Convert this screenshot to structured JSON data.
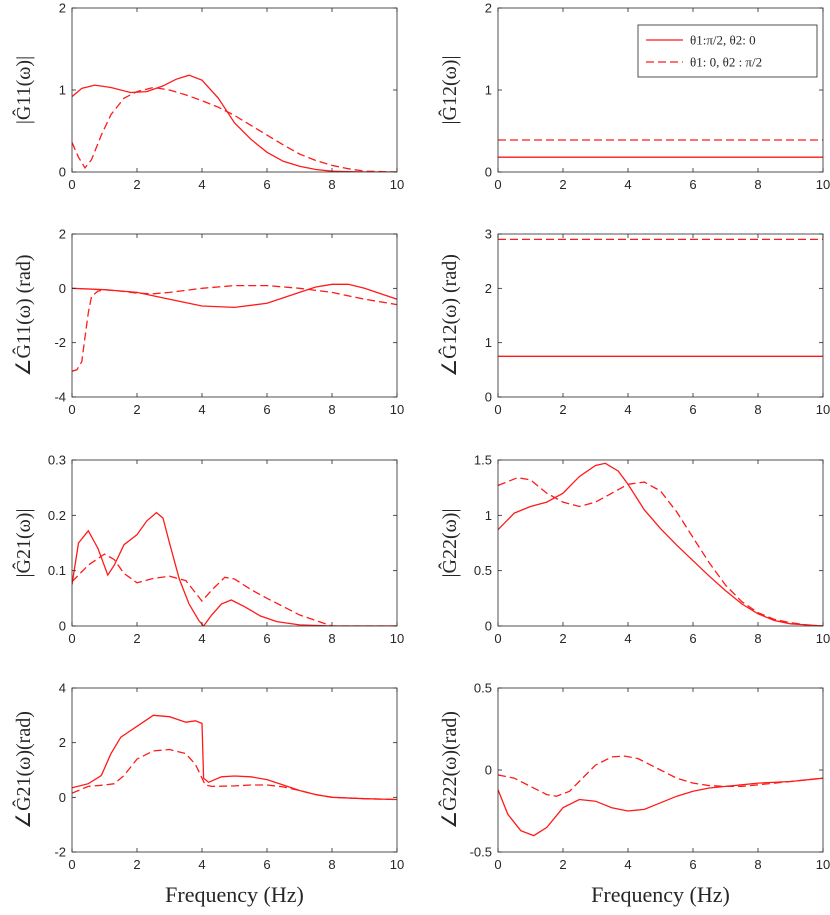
{
  "figure": {
    "x_label": "Frequency (Hz)",
    "line_color": "#ff1a1a",
    "legend": [
      {
        "label": "θ1:π/2, θ2: 0",
        "style": "solid"
      },
      {
        "label": "θ1: 0, θ2 : π/2",
        "style": "dashed"
      }
    ]
  },
  "chart_data": [
    {
      "id": "g11-mag",
      "type": "line",
      "ylabel": "|Ĝ11(ω)|",
      "xlim": [
        0,
        10
      ],
      "ylim": [
        0,
        2
      ],
      "xticks": [
        "0",
        "2",
        "4",
        "6",
        "8",
        "10"
      ],
      "yticks": [
        "0",
        "1",
        "2"
      ],
      "series": [
        {
          "name": "θ1:π/2, θ2: 0",
          "style": "solid",
          "x": [
            0,
            0.3,
            0.7,
            1.2,
            1.8,
            2.3,
            2.8,
            3.2,
            3.6,
            4.0,
            4.5,
            5.0,
            5.5,
            6.0,
            6.5,
            7.0,
            7.5,
            8.0,
            8.5,
            9.0,
            10
          ],
          "y": [
            0.92,
            1.02,
            1.06,
            1.03,
            0.97,
            0.98,
            1.05,
            1.13,
            1.18,
            1.12,
            0.9,
            0.6,
            0.4,
            0.24,
            0.13,
            0.07,
            0.03,
            0.01,
            0.005,
            0,
            0
          ]
        },
        {
          "name": "θ1: 0, θ2 : π/2",
          "style": "dashed",
          "x": [
            0,
            0.2,
            0.4,
            0.6,
            0.9,
            1.2,
            1.6,
            2.0,
            2.5,
            3.0,
            3.5,
            4.0,
            4.5,
            5.0,
            5.5,
            6.0,
            6.5,
            7.0,
            7.5,
            8.0,
            8.5,
            9.0,
            10
          ],
          "y": [
            0.36,
            0.18,
            0.05,
            0.15,
            0.45,
            0.7,
            0.9,
            0.98,
            1.03,
            1.0,
            0.94,
            0.87,
            0.79,
            0.69,
            0.57,
            0.45,
            0.33,
            0.22,
            0.14,
            0.08,
            0.04,
            0.01,
            0
          ]
        }
      ]
    },
    {
      "id": "g12-mag",
      "type": "line",
      "ylabel": "|Ĝ12(ω)|",
      "xlim": [
        0,
        10
      ],
      "ylim": [
        0,
        2
      ],
      "xticks": [
        "0",
        "2",
        "4",
        "6",
        "8",
        "10"
      ],
      "yticks": [
        "0",
        "1",
        "2"
      ],
      "legend_position": "top-right",
      "series": [
        {
          "name": "θ1:π/2, θ2: 0",
          "style": "solid",
          "x": [
            0,
            10
          ],
          "y": [
            0.18,
            0.18
          ]
        },
        {
          "name": "θ1: 0, θ2 : π/2",
          "style": "dashed",
          "x": [
            0,
            10
          ],
          "y": [
            0.39,
            0.39
          ]
        }
      ]
    },
    {
      "id": "g11-phase",
      "type": "line",
      "ylabel": "∠Ĝ11(ω) (rad)",
      "xlim": [
        0,
        10
      ],
      "ylim": [
        -4,
        2
      ],
      "xticks": [
        "0",
        "2",
        "4",
        "6",
        "8",
        "10"
      ],
      "yticks": [
        "-4",
        "-2",
        "0",
        "2"
      ],
      "series": [
        {
          "name": "θ1:π/2, θ2: 0",
          "style": "solid",
          "x": [
            0,
            1,
            2,
            3,
            4,
            5,
            6,
            7,
            7.5,
            8,
            8.5,
            9,
            9.5,
            10
          ],
          "y": [
            0,
            -0.05,
            -0.15,
            -0.4,
            -0.65,
            -0.7,
            -0.55,
            -0.15,
            0.05,
            0.15,
            0.15,
            0,
            -0.2,
            -0.4
          ]
        },
        {
          "name": "θ1: 0, θ2 : π/2",
          "style": "dashed",
          "x": [
            0,
            0.15,
            0.3,
            0.4,
            0.5,
            0.6,
            0.8,
            1.0,
            1.5,
            2.0,
            2.5,
            3,
            4,
            5,
            6,
            7,
            8,
            9,
            10
          ],
          "y": [
            -3.05,
            -3.0,
            -2.7,
            -1.8,
            -0.9,
            -0.3,
            -0.1,
            -0.05,
            -0.1,
            -0.18,
            -0.2,
            -0.15,
            0,
            0.1,
            0.1,
            0,
            -0.15,
            -0.4,
            -0.6
          ]
        }
      ]
    },
    {
      "id": "g12-phase",
      "type": "line",
      "ylabel": "∠Ĝ12(ω) (rad)",
      "xlim": [
        0,
        10
      ],
      "ylim": [
        0,
        3
      ],
      "xticks": [
        "0",
        "2",
        "4",
        "6",
        "8",
        "10"
      ],
      "yticks": [
        "0",
        "1",
        "2",
        "3"
      ],
      "series": [
        {
          "name": "θ1:π/2, θ2: 0",
          "style": "solid",
          "x": [
            0,
            10
          ],
          "y": [
            0.75,
            0.75
          ]
        },
        {
          "name": "θ1: 0, θ2 : π/2",
          "style": "dashed",
          "x": [
            0,
            10
          ],
          "y": [
            2.9,
            2.9
          ]
        }
      ]
    },
    {
      "id": "g21-mag",
      "type": "line",
      "ylabel": "|Ĝ21(ω)|",
      "xlim": [
        0,
        10
      ],
      "ylim": [
        0,
        0.3
      ],
      "xticks": [
        "0",
        "2",
        "4",
        "6",
        "8",
        "10"
      ],
      "yticks": [
        "0",
        "0.1",
        "0.2",
        "0.3"
      ],
      "series": [
        {
          "name": "θ1:π/2, θ2: 0",
          "style": "solid",
          "x": [
            0,
            0.2,
            0.5,
            0.8,
            1.1,
            1.3,
            1.6,
            2.0,
            2.3,
            2.6,
            2.8,
            3.0,
            3.3,
            3.6,
            3.9,
            4.05,
            4.3,
            4.6,
            4.9,
            5.3,
            5.8,
            6.3,
            7,
            8,
            10
          ],
          "y": [
            0.075,
            0.15,
            0.172,
            0.14,
            0.092,
            0.11,
            0.147,
            0.165,
            0.19,
            0.205,
            0.195,
            0.15,
            0.085,
            0.04,
            0.01,
            0,
            0.02,
            0.04,
            0.047,
            0.035,
            0.018,
            0.008,
            0.002,
            0,
            0
          ]
        },
        {
          "name": "θ1: 0, θ2 : π/2",
          "style": "dashed",
          "x": [
            0,
            0.5,
            1.0,
            1.3,
            1.6,
            2.0,
            2.5,
            3.0,
            3.5,
            3.8,
            4.0,
            4.3,
            4.7,
            5.0,
            5.5,
            6.0,
            6.5,
            7,
            7.5,
            8,
            10
          ],
          "y": [
            0.08,
            0.11,
            0.13,
            0.12,
            0.095,
            0.078,
            0.086,
            0.09,
            0.082,
            0.06,
            0.045,
            0.065,
            0.088,
            0.085,
            0.066,
            0.05,
            0.035,
            0.02,
            0.01,
            0,
            0
          ]
        }
      ]
    },
    {
      "id": "g22-mag",
      "type": "line",
      "ylabel": "|Ĝ22(ω)|",
      "xlim": [
        0,
        10
      ],
      "ylim": [
        0,
        1.5
      ],
      "xticks": [
        "0",
        "2",
        "4",
        "6",
        "8",
        "10"
      ],
      "yticks": [
        "0",
        "0.5",
        "1",
        "1.5"
      ],
      "series": [
        {
          "name": "θ1:π/2, θ2: 0",
          "style": "solid",
          "x": [
            0,
            0.5,
            1.0,
            1.5,
            2.0,
            2.5,
            3.0,
            3.3,
            3.7,
            4.0,
            4.5,
            5,
            5.5,
            6,
            6.5,
            7,
            7.5,
            8,
            8.5,
            9,
            9.5,
            10
          ],
          "y": [
            0.87,
            1.02,
            1.08,
            1.12,
            1.2,
            1.35,
            1.45,
            1.47,
            1.4,
            1.28,
            1.05,
            0.88,
            0.73,
            0.59,
            0.45,
            0.32,
            0.2,
            0.11,
            0.05,
            0.02,
            0.01,
            0
          ]
        },
        {
          "name": "θ1: 0, θ2 : π/2",
          "style": "dashed",
          "x": [
            0,
            0.6,
            1.0,
            1.5,
            2.0,
            2.5,
            3.0,
            3.5,
            4.0,
            4.5,
            5.0,
            5.5,
            6,
            6.5,
            7,
            7.5,
            8,
            8.5,
            9,
            9.5,
            10
          ],
          "y": [
            1.27,
            1.34,
            1.32,
            1.2,
            1.12,
            1.08,
            1.12,
            1.2,
            1.28,
            1.3,
            1.22,
            1.03,
            0.8,
            0.57,
            0.37,
            0.22,
            0.12,
            0.06,
            0.03,
            0.01,
            0
          ]
        }
      ]
    },
    {
      "id": "g21-phase",
      "type": "line",
      "ylabel": "∠Ĝ21(ω)(rad)",
      "xlim": [
        0,
        10
      ],
      "ylim": [
        -2,
        4
      ],
      "xticks": [
        "0",
        "2",
        "4",
        "6",
        "8",
        "10"
      ],
      "yticks": [
        "-2",
        "0",
        "2",
        "4"
      ],
      "series": [
        {
          "name": "θ1:π/2, θ2: 0",
          "style": "solid",
          "x": [
            0,
            0.5,
            0.9,
            1.2,
            1.5,
            2.0,
            2.5,
            3.0,
            3.5,
            3.8,
            4.0,
            4.05,
            4.2,
            4.6,
            5,
            5.5,
            6,
            6.5,
            7,
            7.5,
            8,
            9,
            10
          ],
          "y": [
            0.35,
            0.5,
            0.8,
            1.6,
            2.2,
            2.6,
            3.0,
            2.95,
            2.75,
            2.8,
            2.7,
            0.7,
            0.55,
            0.75,
            0.78,
            0.75,
            0.65,
            0.45,
            0.25,
            0.1,
            0,
            -0.05,
            -0.08
          ]
        },
        {
          "name": "θ1: 0, θ2 : π/2",
          "style": "dashed",
          "x": [
            0,
            0.5,
            1.0,
            1.3,
            1.6,
            2.0,
            2.5,
            3.0,
            3.5,
            3.8,
            4.0,
            4.1,
            4.3,
            5,
            5.5,
            6,
            6.5,
            7,
            7.5,
            8,
            9,
            10
          ],
          "y": [
            0.15,
            0.4,
            0.45,
            0.5,
            0.8,
            1.4,
            1.7,
            1.75,
            1.6,
            1.2,
            0.7,
            0.45,
            0.4,
            0.42,
            0.45,
            0.45,
            0.38,
            0.25,
            0.1,
            0,
            -0.05,
            -0.08
          ]
        }
      ]
    },
    {
      "id": "g22-phase",
      "type": "line",
      "ylabel": "∠Ĝ22(ω)(rad)",
      "xlim": [
        0,
        10
      ],
      "ylim": [
        -0.5,
        0.5
      ],
      "xticks": [
        "0",
        "2",
        "4",
        "6",
        "8",
        "10"
      ],
      "yticks": [
        "-0.5",
        "0",
        "0.5"
      ],
      "series": [
        {
          "name": "θ1:π/2, θ2: 0",
          "style": "solid",
          "x": [
            0,
            0.3,
            0.7,
            1.1,
            1.5,
            2.0,
            2.5,
            3.0,
            3.5,
            4.0,
            4.5,
            5.0,
            5.5,
            6,
            6.5,
            7,
            7.5,
            8,
            9,
            10
          ],
          "y": [
            -0.12,
            -0.27,
            -0.37,
            -0.4,
            -0.35,
            -0.23,
            -0.18,
            -0.19,
            -0.23,
            -0.25,
            -0.24,
            -0.2,
            -0.16,
            -0.13,
            -0.11,
            -0.1,
            -0.09,
            -0.08,
            -0.07,
            -0.05
          ]
        },
        {
          "name": "θ1: 0, θ2 : π/2",
          "style": "dashed",
          "x": [
            0,
            0.5,
            1.0,
            1.5,
            1.8,
            2.2,
            2.6,
            3.0,
            3.5,
            3.9,
            4.3,
            5.0,
            5.5,
            6,
            6.5,
            7,
            7.5,
            8,
            9,
            10
          ],
          "y": [
            -0.03,
            -0.05,
            -0.1,
            -0.15,
            -0.16,
            -0.13,
            -0.05,
            0.03,
            0.08,
            0.085,
            0.07,
            0.0,
            -0.05,
            -0.08,
            -0.095,
            -0.1,
            -0.1,
            -0.09,
            -0.07,
            -0.05
          ]
        }
      ]
    }
  ]
}
